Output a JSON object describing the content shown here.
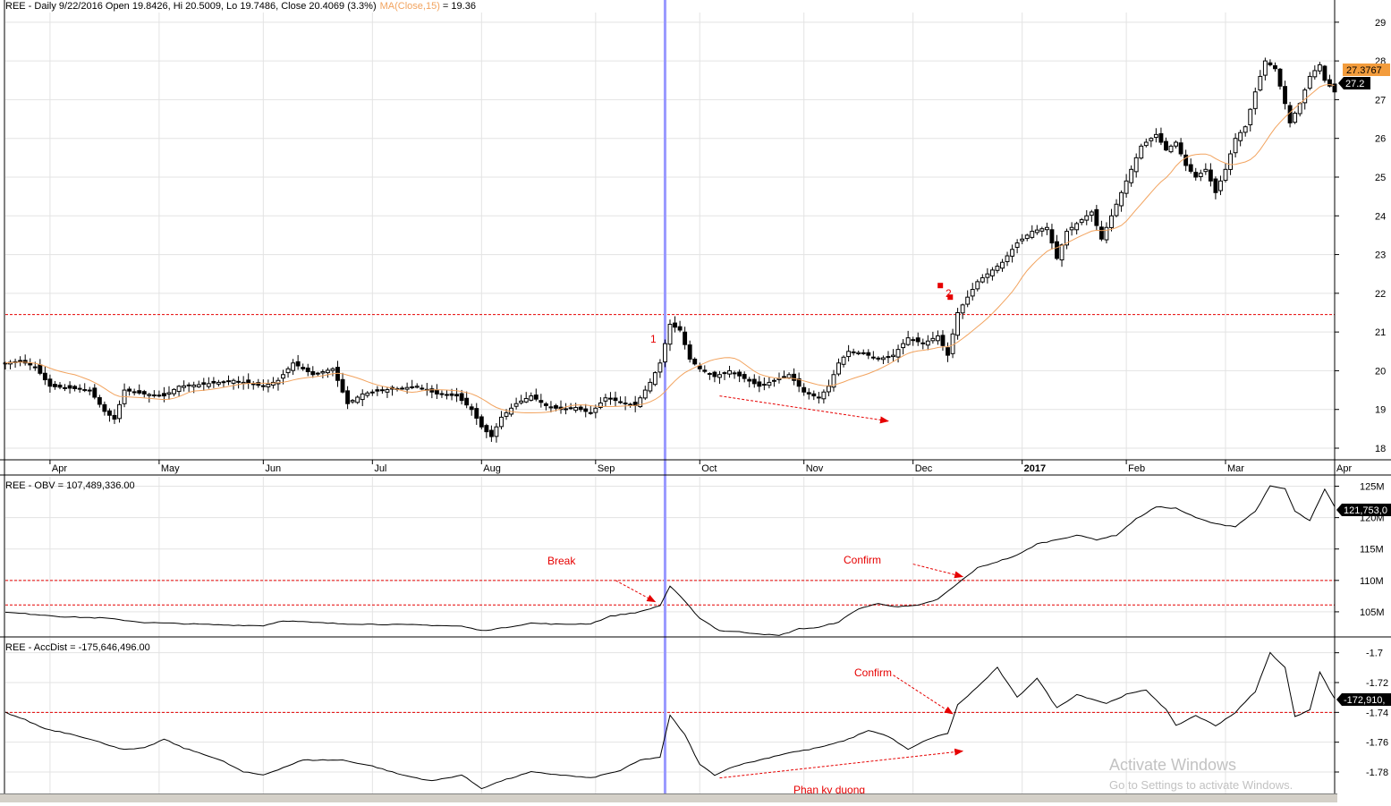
{
  "colors": {
    "candle": "#000000",
    "ma": "#f2a35e",
    "ma_label": "#f2a35e",
    "annotation": "#e60000",
    "cursor": "#9999ff",
    "grid": "#e3e3e3",
    "badge_orange": "#f39c3c",
    "badge_black": "#000000"
  },
  "header": {
    "price_prefix": "REE - Daily 9/22/2016 Open 19.8426, Hi 20.5009, Lo 19.7486, Close 20.4069 (3.3%)",
    "ma_label": "MA(Close,15)",
    "ma_value": " = 19.36",
    "obv": "REE - OBV = 107,489,336.00",
    "accdist": "REE - AccDist = -175,646,496.00"
  },
  "badges": {
    "price_ma": "27.3767",
    "price_close": "27.2",
    "obv_last": "121,753,0",
    "accdist_last": "-172,910,"
  },
  "annotations": {
    "marker_1": "1",
    "marker_2": "2",
    "break": "Break",
    "confirm_obv": "Confirm",
    "confirm_ad": "Confirm",
    "divergence": "Phan ky duong"
  },
  "watermark": {
    "line1": "Activate Windows",
    "line2": "Go to Settings to activate Windows."
  },
  "chart_data": [
    {
      "type": "candlestick",
      "title": "REE - Daily 9/22/2016 Open 19.8426, Hi 20.5009, Lo 19.7486, Close 20.4069 (3.3%)",
      "ylim": [
        17.7,
        29.25
      ],
      "yticks": [
        18,
        19,
        20,
        21,
        22,
        23,
        24,
        25,
        26,
        27,
        28,
        29
      ],
      "month_labels": [
        {
          "label": "Apr",
          "x": 9
        },
        {
          "label": "May",
          "x": 31
        },
        {
          "label": "Jun",
          "x": 52
        },
        {
          "label": "Jul",
          "x": 74
        },
        {
          "label": "Aug",
          "x": 96
        },
        {
          "label": "Sep",
          "x": 119
        },
        {
          "label": "Oct",
          "x": 140
        },
        {
          "label": "Nov",
          "x": 161
        },
        {
          "label": "Dec",
          "x": 183
        },
        {
          "label": "2017",
          "x": 205,
          "bold": true
        },
        {
          "label": "Feb",
          "x": 226
        },
        {
          "label": "Mar",
          "x": 246
        },
        {
          "label": "Apr",
          "x": 268
        }
      ],
      "x_count": 268,
      "close_keypoints": [
        [
          0,
          20.2
        ],
        [
          3,
          20.25
        ],
        [
          6,
          20.1
        ],
        [
          9,
          19.6
        ],
        [
          13,
          19.55
        ],
        [
          17,
          19.5
        ],
        [
          20,
          18.95
        ],
        [
          22,
          18.75
        ],
        [
          24,
          19.5
        ],
        [
          28,
          19.4
        ],
        [
          32,
          19.35
        ],
        [
          35,
          19.6
        ],
        [
          40,
          19.65
        ],
        [
          46,
          19.75
        ],
        [
          52,
          19.6
        ],
        [
          55,
          19.75
        ],
        [
          58,
          20.2
        ],
        [
          62,
          19.9
        ],
        [
          66,
          20.05
        ],
        [
          69,
          19.15
        ],
        [
          72,
          19.4
        ],
        [
          76,
          19.5
        ],
        [
          80,
          19.55
        ],
        [
          83,
          19.6
        ],
        [
          87,
          19.4
        ],
        [
          91,
          19.35
        ],
        [
          94,
          19.0
        ],
        [
          96,
          18.55
        ],
        [
          98,
          18.3
        ],
        [
          100,
          18.8
        ],
        [
          103,
          19.15
        ],
        [
          106,
          19.35
        ],
        [
          109,
          19.1
        ],
        [
          112,
          19.0
        ],
        [
          115,
          19.05
        ],
        [
          118,
          18.9
        ],
        [
          121,
          19.3
        ],
        [
          124,
          19.2
        ],
        [
          127,
          19.1
        ],
        [
          130,
          19.7
        ],
        [
          132,
          20.2
        ],
        [
          134,
          21.2
        ],
        [
          136,
          21.05
        ],
        [
          138,
          20.3
        ],
        [
          140,
          20.05
        ],
        [
          143,
          19.85
        ],
        [
          146,
          20.0
        ],
        [
          149,
          19.8
        ],
        [
          152,
          19.6
        ],
        [
          155,
          19.75
        ],
        [
          158,
          19.9
        ],
        [
          161,
          19.45
        ],
        [
          164,
          19.3
        ],
        [
          166,
          19.6
        ],
        [
          168,
          20.2
        ],
        [
          170,
          20.5
        ],
        [
          173,
          20.45
        ],
        [
          176,
          20.3
        ],
        [
          179,
          20.4
        ],
        [
          182,
          20.85
        ],
        [
          185,
          20.7
        ],
        [
          188,
          20.9
        ],
        [
          190,
          20.4
        ],
        [
          192,
          21.5
        ],
        [
          194,
          21.9
        ],
        [
          196,
          22.3
        ],
        [
          198,
          22.5
        ],
        [
          201,
          22.8
        ],
        [
          204,
          23.3
        ],
        [
          207,
          23.6
        ],
        [
          210,
          23.7
        ],
        [
          212,
          22.9
        ],
        [
          214,
          23.6
        ],
        [
          217,
          23.9
        ],
        [
          219,
          24.1
        ],
        [
          221,
          23.4
        ],
        [
          223,
          24.0
        ],
        [
          225,
          24.6
        ],
        [
          227,
          25.2
        ],
        [
          229,
          25.8
        ],
        [
          232,
          26.1
        ],
        [
          234,
          25.7
        ],
        [
          236,
          25.9
        ],
        [
          238,
          25.3
        ],
        [
          240,
          25.0
        ],
        [
          242,
          25.2
        ],
        [
          244,
          24.6
        ],
        [
          246,
          25.2
        ],
        [
          248,
          26.0
        ],
        [
          250,
          26.3
        ],
        [
          252,
          27.2
        ],
        [
          254,
          28.0
        ],
        [
          256,
          27.8
        ],
        [
          258,
          26.9
        ],
        [
          259,
          26.4
        ],
        [
          261,
          26.9
        ],
        [
          263,
          27.6
        ],
        [
          265,
          27.9
        ],
        [
          266,
          27.5
        ],
        [
          268,
          27.2
        ]
      ],
      "series": [
        {
          "name": "MA(Close,15)",
          "values_ref": "computed-from-close"
        }
      ],
      "ma_period": 15,
      "resistance_line": 21.45,
      "cursor_x": 133,
      "marker_1": {
        "x": 131,
        "y": 20.95
      },
      "marker_2": {
        "x": 190,
        "y": 21.9,
        "squares": [
          [
            188.5,
            22.2
          ],
          [
            190.5,
            21.9
          ]
        ]
      },
      "divergence_arrow": {
        "from": [
          144,
          19.35
        ],
        "to": [
          178,
          18.7
        ]
      },
      "last_ma": 27.3767,
      "last_close": 27.2
    },
    {
      "type": "line",
      "title": "REE - OBV = 107,489,336.00",
      "ylim": [
        101.0,
        126.5
      ],
      "yticks": [
        105,
        110,
        115,
        120,
        125
      ],
      "ytick_suffix": "M",
      "keypoints": [
        [
          0,
          104.9
        ],
        [
          6,
          104.6
        ],
        [
          12,
          104.2
        ],
        [
          20,
          104.0
        ],
        [
          28,
          103.3
        ],
        [
          36,
          103.1
        ],
        [
          44,
          102.9
        ],
        [
          52,
          102.8
        ],
        [
          56,
          103.6
        ],
        [
          62,
          103.3
        ],
        [
          68,
          103.1
        ],
        [
          76,
          103.0
        ],
        [
          84,
          102.9
        ],
        [
          92,
          102.7
        ],
        [
          96,
          102.0
        ],
        [
          100,
          102.4
        ],
        [
          106,
          103.2
        ],
        [
          112,
          103.0
        ],
        [
          118,
          103.1
        ],
        [
          122,
          104.3
        ],
        [
          128,
          105.0
        ],
        [
          132,
          106.0
        ],
        [
          134,
          109.1
        ],
        [
          136,
          107.5
        ],
        [
          140,
          104.0
        ],
        [
          144,
          102.0
        ],
        [
          148,
          101.8
        ],
        [
          152,
          101.5
        ],
        [
          156,
          101.2
        ],
        [
          160,
          102.3
        ],
        [
          164,
          102.5
        ],
        [
          168,
          103.4
        ],
        [
          172,
          105.5
        ],
        [
          176,
          106.3
        ],
        [
          180,
          105.8
        ],
        [
          184,
          106.0
        ],
        [
          188,
          107.0
        ],
        [
          192,
          109.5
        ],
        [
          196,
          112.0
        ],
        [
          200,
          113.0
        ],
        [
          204,
          114.0
        ],
        [
          208,
          115.8
        ],
        [
          212,
          116.5
        ],
        [
          216,
          117.2
        ],
        [
          220,
          116.5
        ],
        [
          224,
          117.2
        ],
        [
          228,
          119.8
        ],
        [
          232,
          121.7
        ],
        [
          236,
          121.5
        ],
        [
          240,
          120.0
        ],
        [
          244,
          119.0
        ],
        [
          248,
          118.6
        ],
        [
          252,
          121.0
        ],
        [
          255,
          125.0
        ],
        [
          258,
          124.6
        ],
        [
          260,
          121.0
        ],
        [
          263,
          119.5
        ],
        [
          266,
          124.5
        ],
        [
          268,
          121.7
        ]
      ],
      "levels": [
        110.0,
        106.1
      ],
      "break_arrow": {
        "from": [
          123,
          110.0
        ],
        "to": [
          131,
          106.6
        ]
      },
      "confirm_arrow": {
        "from": [
          183,
          112.6
        ],
        "to": [
          193,
          110.6
        ]
      },
      "last_value": "121,753,0"
    },
    {
      "type": "line",
      "title": "REE - AccDist = -175,646,496.00",
      "ylim": [
        -1.795,
        -1.69
      ],
      "yticks": [
        -1.7,
        -1.72,
        -1.74,
        -1.76,
        -1.78
      ],
      "ytick_labels": [
        "-1.7",
        "-1.72",
        "-1.74",
        "-1.76",
        "-1.78"
      ],
      "keypoints": [
        [
          0,
          -1.74
        ],
        [
          4,
          -1.745
        ],
        [
          8,
          -1.751
        ],
        [
          14,
          -1.755
        ],
        [
          20,
          -1.761
        ],
        [
          24,
          -1.765
        ],
        [
          28,
          -1.764
        ],
        [
          32,
          -1.758
        ],
        [
          36,
          -1.764
        ],
        [
          40,
          -1.768
        ],
        [
          44,
          -1.773
        ],
        [
          48,
          -1.78
        ],
        [
          52,
          -1.782
        ],
        [
          56,
          -1.777
        ],
        [
          60,
          -1.772
        ],
        [
          64,
          -1.772
        ],
        [
          68,
          -1.772
        ],
        [
          74,
          -1.776
        ],
        [
          80,
          -1.782
        ],
        [
          86,
          -1.786
        ],
        [
          92,
          -1.782
        ],
        [
          96,
          -1.791
        ],
        [
          100,
          -1.786
        ],
        [
          106,
          -1.78
        ],
        [
          112,
          -1.782
        ],
        [
          118,
          -1.784
        ],
        [
          124,
          -1.779
        ],
        [
          128,
          -1.772
        ],
        [
          132,
          -1.77
        ],
        [
          134,
          -1.742
        ],
        [
          137,
          -1.755
        ],
        [
          140,
          -1.775
        ],
        [
          143,
          -1.782
        ],
        [
          147,
          -1.776
        ],
        [
          152,
          -1.772
        ],
        [
          158,
          -1.767
        ],
        [
          162,
          -1.765
        ],
        [
          166,
          -1.762
        ],
        [
          170,
          -1.758
        ],
        [
          174,
          -1.752
        ],
        [
          178,
          -1.756
        ],
        [
          182,
          -1.765
        ],
        [
          186,
          -1.758
        ],
        [
          190,
          -1.754
        ],
        [
          192,
          -1.735
        ],
        [
          196,
          -1.723
        ],
        [
          200,
          -1.71
        ],
        [
          204,
          -1.73
        ],
        [
          208,
          -1.717
        ],
        [
          212,
          -1.737
        ],
        [
          216,
          -1.728
        ],
        [
          222,
          -1.734
        ],
        [
          226,
          -1.728
        ],
        [
          230,
          -1.725
        ],
        [
          234,
          -1.738
        ],
        [
          236,
          -1.749
        ],
        [
          240,
          -1.742
        ],
        [
          244,
          -1.749
        ],
        [
          248,
          -1.74
        ],
        [
          252,
          -1.726
        ],
        [
          255,
          -1.7
        ],
        [
          258,
          -1.71
        ],
        [
          260,
          -1.743
        ],
        [
          263,
          -1.738
        ],
        [
          265,
          -1.713
        ],
        [
          268,
          -1.731
        ]
      ],
      "levels": [
        -1.74
      ],
      "confirm_arrow": {
        "from": [
          179,
          -1.715
        ],
        "to": [
          191,
          -1.741
        ]
      },
      "divergence_arrow": {
        "from": [
          144,
          -1.784
        ],
        "to": [
          193,
          -1.766
        ]
      },
      "last_value": "-172,910,"
    }
  ]
}
